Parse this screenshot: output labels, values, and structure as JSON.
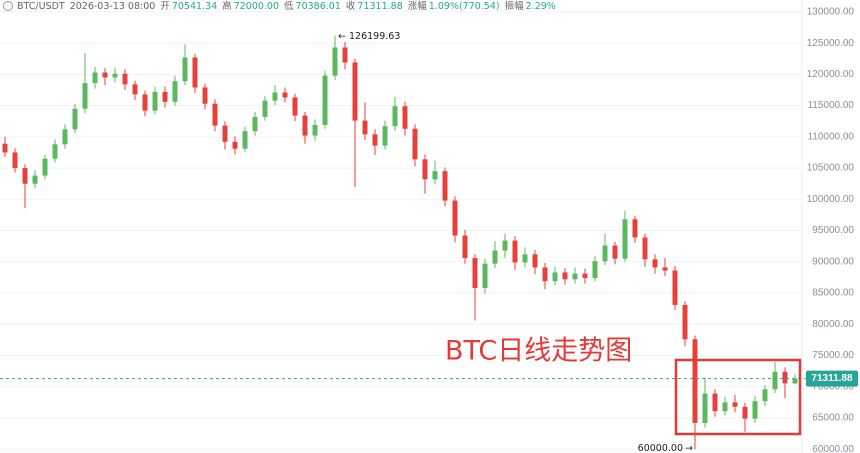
{
  "header": {
    "symbol": "BTC/USDT",
    "time": "2026-03-13 08:00",
    "fields": [
      {
        "label": "开",
        "value": "70541.34"
      },
      {
        "label": "高",
        "value": "72000.00"
      },
      {
        "label": "低",
        "value": "70386.01"
      },
      {
        "label": "收",
        "value": "71311.88"
      },
      {
        "label": "涨幅",
        "value": "1.09%(770.54)"
      },
      {
        "label": "振幅",
        "value": "2.29%"
      }
    ]
  },
  "chart_data": {
    "type": "candlestick",
    "title": "BTC日线走势图",
    "up_color": "#5cb85c",
    "down_color": "#e5403a",
    "grid": true,
    "ylim": [
      59400,
      131900
    ],
    "yticks": [
      {
        "value": 60000,
        "label": "60000.00"
      },
      {
        "value": 65000,
        "label": "65000.00"
      },
      {
        "value": 70000,
        "label": "70000.00"
      },
      {
        "value": 75000,
        "label": "75000.00"
      },
      {
        "value": 80000,
        "label": "80000.00"
      },
      {
        "value": 85000,
        "label": "85000.00"
      },
      {
        "value": 90000,
        "label": "90000.00"
      },
      {
        "value": 95000,
        "label": "95000.00"
      },
      {
        "value": 100000,
        "label": "100000.00"
      },
      {
        "value": 105000,
        "label": "105000.00"
      },
      {
        "value": 110000,
        "label": "110000.00"
      },
      {
        "value": 115000,
        "label": "115000.00"
      },
      {
        "value": 120000,
        "label": "120000.00"
      },
      {
        "value": 125000,
        "label": "125000.00"
      },
      {
        "value": 130000,
        "label": "130000.00"
      }
    ],
    "annotations": {
      "high_label": "126199.63",
      "low_label": "60000.00"
    },
    "candles": {
      "open": [
        108900,
        107500,
        105000,
        102500,
        103800,
        106500,
        108800,
        111200,
        114500,
        118600,
        120300,
        119500,
        120100,
        118400,
        116800,
        114200,
        117200,
        115600,
        118900,
        122700,
        117900,
        115300,
        111800,
        109200,
        108100,
        110900,
        113200,
        115800,
        117100,
        116300,
        113400,
        110200,
        111900,
        119800,
        124300,
        121900,
        112600,
        110400,
        108600,
        111700,
        114900,
        111300,
        106400,
        103200,
        104500,
        99800,
        94200,
        90600,
        85800,
        89700,
        91800,
        93400,
        89900,
        91200,
        89100,
        86900,
        88300,
        87200,
        88100,
        87400,
        90100,
        92600,
        90500,
        96800,
        93900,
        90400,
        89100,
        88600,
        83100,
        77600,
        64200,
        68900,
        66100,
        67500,
        66800,
        64900,
        67700,
        69600,
        72400,
        70541.34
      ],
      "high": [
        110000,
        108200,
        105600,
        104700,
        107100,
        109600,
        112000,
        115300,
        123400,
        121200,
        121000,
        121100,
        120800,
        119000,
        117400,
        118000,
        118100,
        119800,
        124800,
        123300,
        118500,
        116000,
        112500,
        110100,
        111600,
        114000,
        116500,
        118300,
        117900,
        116900,
        114000,
        112800,
        120600,
        126199.63,
        125200,
        122500,
        115500,
        111200,
        112600,
        116400,
        115600,
        112000,
        107200,
        106200,
        105100,
        100500,
        95100,
        91200,
        90500,
        93300,
        94500,
        94100,
        92300,
        91900,
        89800,
        89200,
        89000,
        89100,
        88900,
        90900,
        94500,
        93200,
        98200,
        97400,
        94500,
        91200,
        90600,
        89300,
        83700,
        78200,
        71500,
        69600,
        68400,
        68700,
        67400,
        68500,
        70300,
        74000,
        73100,
        72000
      ],
      "low": [
        106800,
        104300,
        98600,
        101800,
        103200,
        105900,
        108100,
        110600,
        113800,
        117700,
        118300,
        118700,
        117500,
        115900,
        113300,
        113600,
        114700,
        115000,
        118300,
        117000,
        114400,
        110900,
        108000,
        107200,
        107500,
        110200,
        112600,
        115100,
        115500,
        112500,
        108900,
        109400,
        111300,
        119100,
        120800,
        102000,
        109500,
        107100,
        108000,
        111000,
        110200,
        105300,
        100900,
        102400,
        98900,
        93100,
        89700,
        80600,
        84900,
        89000,
        90600,
        88700,
        89100,
        88000,
        85600,
        86200,
        86300,
        86500,
        86500,
        86900,
        89500,
        89600,
        90000,
        93000,
        89200,
        88100,
        87700,
        82300,
        76500,
        60000,
        63500,
        65200,
        65400,
        65900,
        62800,
        64200,
        66900,
        69000,
        68200,
        70386.01
      ],
      "close": [
        107500,
        105000,
        102500,
        103800,
        106500,
        108800,
        111200,
        114500,
        118600,
        120300,
        119500,
        120100,
        118400,
        116800,
        114200,
        117200,
        115600,
        118900,
        122700,
        117900,
        115300,
        111800,
        109200,
        108100,
        110900,
        113200,
        115800,
        117100,
        116300,
        113400,
        110200,
        111900,
        119800,
        124300,
        121900,
        112600,
        110400,
        108600,
        111700,
        114900,
        111300,
        106400,
        103200,
        104500,
        99800,
        94200,
        90600,
        85800,
        89700,
        91800,
        93400,
        89900,
        91200,
        89100,
        86900,
        88300,
        87200,
        88100,
        87400,
        90100,
        92600,
        90500,
        96800,
        93900,
        90400,
        89100,
        88600,
        83100,
        77600,
        64200,
        68900,
        66100,
        67500,
        66800,
        64900,
        67700,
        69600,
        72400,
        70541.34,
        71311.88
      ]
    }
  }
}
